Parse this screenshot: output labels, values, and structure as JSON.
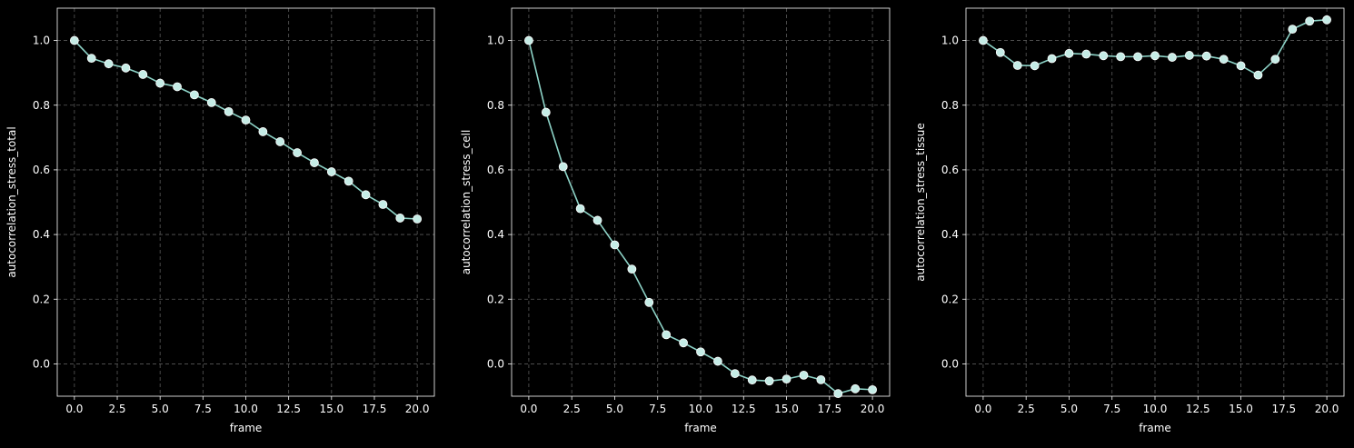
{
  "chart_data": [
    {
      "type": "line",
      "xlabel": "frame",
      "ylabel": "autocorrelation_stress_total",
      "xlim": [
        -1,
        21
      ],
      "ylim": [
        -0.1,
        1.1
      ],
      "xticks": [
        0.0,
        2.5,
        5.0,
        7.5,
        10.0,
        12.5,
        15.0,
        17.5,
        20.0
      ],
      "xtick_labels": [
        "0.0",
        "2.5",
        "5.0",
        "7.5",
        "10.0",
        "12.5",
        "15.0",
        "17.5",
        "20.0"
      ],
      "yticks": [
        0.0,
        0.2,
        0.4,
        0.6,
        0.8,
        1.0
      ],
      "ytick_labels": [
        "0.0",
        "0.2",
        "0.4",
        "0.6",
        "0.8",
        "1.0"
      ],
      "grid": true,
      "x": [
        0,
        1,
        2,
        3,
        4,
        5,
        6,
        7,
        8,
        9,
        10,
        11,
        12,
        13,
        14,
        15,
        16,
        17,
        18,
        19,
        20
      ],
      "values": [
        1.0,
        0.945,
        0.928,
        0.915,
        0.895,
        0.868,
        0.857,
        0.832,
        0.808,
        0.78,
        0.754,
        0.718,
        0.687,
        0.653,
        0.622,
        0.594,
        0.565,
        0.523,
        0.493,
        0.451,
        0.448
      ]
    },
    {
      "type": "line",
      "xlabel": "frame",
      "ylabel": "autocorrelation_stress_cell",
      "xlim": [
        -1,
        21
      ],
      "ylim": [
        -0.1,
        1.1
      ],
      "xticks": [
        0.0,
        2.5,
        5.0,
        7.5,
        10.0,
        12.5,
        15.0,
        17.5,
        20.0
      ],
      "xtick_labels": [
        "0.0",
        "2.5",
        "5.0",
        "7.5",
        "10.0",
        "12.5",
        "15.0",
        "17.5",
        "20.0"
      ],
      "yticks": [
        0.0,
        0.2,
        0.4,
        0.6,
        0.8,
        1.0
      ],
      "ytick_labels": [
        "0.0",
        "0.2",
        "0.4",
        "0.6",
        "0.8",
        "1.0"
      ],
      "grid": true,
      "x": [
        0,
        1,
        2,
        3,
        4,
        5,
        6,
        7,
        8,
        9,
        10,
        11,
        12,
        13,
        14,
        15,
        16,
        17,
        18,
        19,
        20
      ],
      "values": [
        1.0,
        0.778,
        0.61,
        0.48,
        0.444,
        0.368,
        0.293,
        0.19,
        0.09,
        0.065,
        0.037,
        0.008,
        -0.03,
        -0.05,
        -0.053,
        -0.047,
        -0.035,
        -0.049,
        -0.092,
        -0.077,
        -0.08
      ]
    },
    {
      "type": "line",
      "xlabel": "frame",
      "ylabel": "autocorrelation_stress_tissue",
      "xlim": [
        -1,
        21
      ],
      "ylim": [
        -0.1,
        1.1
      ],
      "xticks": [
        0.0,
        2.5,
        5.0,
        7.5,
        10.0,
        12.5,
        15.0,
        17.5,
        20.0
      ],
      "xtick_labels": [
        "0.0",
        "2.5",
        "5.0",
        "7.5",
        "10.0",
        "12.5",
        "15.0",
        "17.5",
        "20.0"
      ],
      "yticks": [
        0.0,
        0.2,
        0.4,
        0.6,
        0.8,
        1.0
      ],
      "ytick_labels": [
        "0.0",
        "0.2",
        "0.4",
        "0.6",
        "0.8",
        "1.0"
      ],
      "grid": true,
      "x": [
        0,
        1,
        2,
        3,
        4,
        5,
        6,
        7,
        8,
        9,
        10,
        11,
        12,
        13,
        14,
        15,
        16,
        17,
        18,
        19,
        20
      ],
      "values": [
        1.0,
        0.963,
        0.923,
        0.922,
        0.944,
        0.96,
        0.958,
        0.953,
        0.95,
        0.95,
        0.953,
        0.948,
        0.954,
        0.952,
        0.942,
        0.922,
        0.893,
        0.942,
        1.035,
        1.06,
        1.064
      ]
    }
  ],
  "colors": {
    "background": "#000000",
    "line": "#8dd3c7",
    "marker_fill": "#c5ece6",
    "marker_edge": "#ffffff",
    "grid": "#5a5a5a",
    "axes": "#ffffff"
  }
}
